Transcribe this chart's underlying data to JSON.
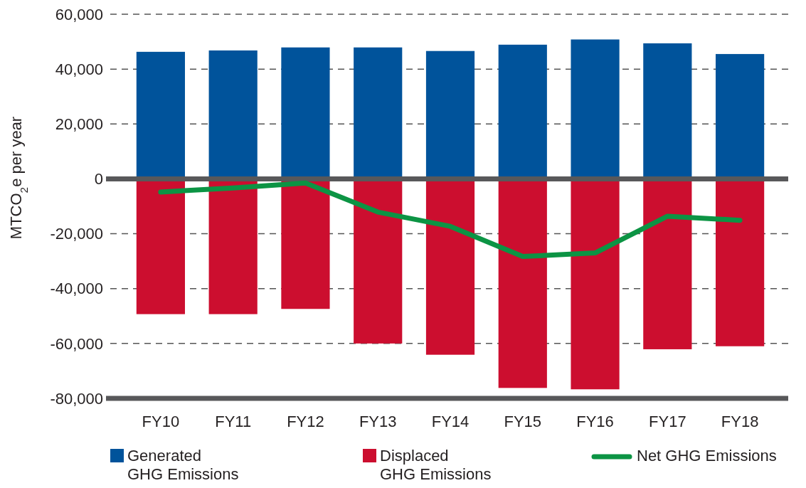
{
  "chart_data": {
    "type": "bar",
    "stacked": true,
    "ylabel": "MTCO$_{2}$e per year",
    "categories": [
      "FY10",
      "FY11",
      "FY12",
      "FY13",
      "FY14",
      "FY15",
      "FY16",
      "FY17",
      "FY18"
    ],
    "series": [
      {
        "name": "Generated GHG Emissions",
        "color": "#00539b",
        "values": [
          46300,
          46800,
          47900,
          47900,
          46600,
          48900,
          50800,
          49400,
          45500
        ]
      },
      {
        "name": "Displaced GHG Emissions",
        "color": "#cc0e2f",
        "values": [
          -49300,
          -49300,
          -47400,
          -60000,
          -64100,
          -76200,
          -76700,
          -62100,
          -61000
        ]
      },
      {
        "name": "Net GHG Emissions",
        "type": "line",
        "color": "#0c9444",
        "values": [
          -4800,
          -3300,
          -1500,
          -12100,
          -17300,
          -28300,
          -27000,
          -13600,
          -15100
        ]
      }
    ],
    "ylim": [
      -80000,
      60000
    ],
    "yticks": [
      {
        "value": -80000,
        "label": "-80,000"
      },
      {
        "value": -60000,
        "label": "-60,000"
      },
      {
        "value": -40000,
        "label": "-40,000"
      },
      {
        "value": -20000,
        "label": "-20,000"
      },
      0,
      {
        "value": 20000,
        "label": "20,000"
      },
      {
        "value": 40000,
        "label": "40,000"
      },
      {
        "value": 60000,
        "label": "60,000"
      }
    ],
    "grid": "y",
    "legend": "bottom",
    "line_style": "solid",
    "marker": "none"
  }
}
